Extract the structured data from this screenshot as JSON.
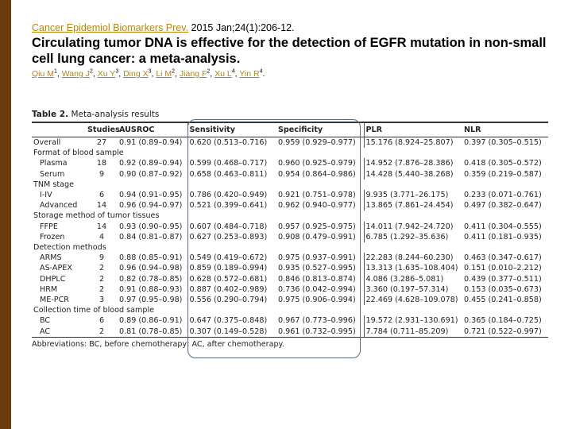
{
  "citation": {
    "journal": "Cancer Epidemiol Biomarkers Prev.",
    "details": "2015 Jan;24(1):206-12."
  },
  "title": "Circulating tumor DNA is effective for the detection of EGFR mutation in non-small cell lung cancer: a meta-analysis.",
  "authors": [
    {
      "name": "Qiu M",
      "aff": "1"
    },
    {
      "name": "Wang J",
      "aff": "2"
    },
    {
      "name": "Xu Y",
      "aff": "3"
    },
    {
      "name": "Ding X",
      "aff": "3"
    },
    {
      "name": "Li M",
      "aff": "2"
    },
    {
      "name": "Jiang F",
      "aff": "2"
    },
    {
      "name": "Xu L",
      "aff": "4"
    },
    {
      "name": "Yin R",
      "aff": "4"
    }
  ],
  "table": {
    "label": "Table 2.",
    "caption": "Meta-analysis results",
    "headers": [
      "",
      "Studies",
      "AUSROC",
      "Sensitivity",
      "Specificity",
      "PLR",
      "NLR"
    ],
    "rows": [
      {
        "type": "data",
        "label": "Overall",
        "cells": [
          "27",
          "0.91 (0.89–0.94)",
          "0.620 (0.513–0.716)",
          "0.959 (0.929–0.977)",
          "15.176 (8.924–25.807)",
          "0.397 (0.305–0.515)"
        ]
      },
      {
        "type": "group",
        "label": "Format of blood sample"
      },
      {
        "type": "data",
        "label": "Plasma",
        "cells": [
          "18",
          "0.92 (0.89–0.94)",
          "0.599 (0.468–0.717)",
          "0.960 (0.925–0.979)",
          "14.952 (7.876–28.386)",
          "0.418 (0.305–0.572)"
        ]
      },
      {
        "type": "data",
        "label": "Serum",
        "cells": [
          "9",
          "0.90 (0.87–0.92)",
          "0.658 (0.463–0.811)",
          "0.954 (0.864–0.986)",
          "14.428 (5.440–38.268)",
          "0.359 (0.219–0.587)"
        ]
      },
      {
        "type": "group",
        "label": "TNM stage"
      },
      {
        "type": "data",
        "label": "I-IV",
        "cells": [
          "6",
          "0.94 (0.91–0.95)",
          "0.786 (0.420–0.949)",
          "0.921 (0.751–0.978)",
          "9.935 (3.771–26.175)",
          "0.233 (0.071–0.761)"
        ]
      },
      {
        "type": "data",
        "label": "Advanced",
        "cells": [
          "14",
          "0.96 (0.94–0.97)",
          "0.521 (0.399–0.641)",
          "0.962 (0.940–0.977)",
          "13.865 (7.861–24.454)",
          "0.497 (0.382–0.647)"
        ]
      },
      {
        "type": "group",
        "label": "Storage method of tumor tissues"
      },
      {
        "type": "data",
        "label": "FFPE",
        "cells": [
          "14",
          "0.93 (0.90–0.95)",
          "0.607 (0.484–0.718)",
          "0.957 (0.925–0.975)",
          "14.011 (7.942–24.720)",
          "0.411 (0.304–0.555)"
        ]
      },
      {
        "type": "data",
        "label": "Frozen",
        "cells": [
          "4",
          "0.84 (0.81–0.87)",
          "0.627 (0.253–0.893)",
          "0.908 (0.479–0.991)",
          "6.785 (1.292–35.636)",
          "0.411 (0.181–0.935)"
        ]
      },
      {
        "type": "group",
        "label": "Detection methods"
      },
      {
        "type": "data",
        "label": "ARMS",
        "cells": [
          "9",
          "0.88 (0.85–0.91)",
          "0.549 (0.419–0.672)",
          "0.975 (0.937–0.991)",
          "22.283 (8.244–60.230)",
          "0.463 (0.347–0.617)"
        ]
      },
      {
        "type": "data",
        "label": "AS-APEX",
        "cells": [
          "2",
          "0.96 (0.94–0.98)",
          "0.859 (0.189–0.994)",
          "0.935 (0.527–0.995)",
          "13.313 (1.635–108.404)",
          "0.151 (0.010–2.212)"
        ]
      },
      {
        "type": "data",
        "label": "DHPLC",
        "cells": [
          "2",
          "0.82 (0.78–0.85)",
          "0.628 (0.572–0.681)",
          "0.846 (0.813–0.874)",
          "4.086 (3.286–5.081)",
          "0.439 (0.377–0.511)"
        ]
      },
      {
        "type": "data",
        "label": "HRM",
        "cells": [
          "2",
          "0.91 (0.88–0.93)",
          "0.887 (0.402–0.989)",
          "0.736 (0.042–0.994)",
          "3.360 (0.197–57.314)",
          "0.153 (0.035–0.673)"
        ]
      },
      {
        "type": "data",
        "label": "ME-PCR",
        "cells": [
          "3",
          "0.97 (0.95–0.98)",
          "0.556 (0.290–0.794)",
          "0.975 (0.906–0.994)",
          "22.469 (4.628–109.078)",
          "0.455 (0.241–0.858)"
        ]
      },
      {
        "type": "group",
        "label": "Collection time of blood sample"
      },
      {
        "type": "data",
        "label": "BC",
        "cells": [
          "6",
          "0.89 (0.86–0.91)",
          "0.647 (0.375–0.848)",
          "0.967 (0.773–0.996)",
          "19.572 (2.931–130.691)",
          "0.365 (0.184–0.725)"
        ]
      },
      {
        "type": "data",
        "label": "AC",
        "cells": [
          "2",
          "0.81 (0.78–0.85)",
          "0.307 (0.149–0.528)",
          "0.961 (0.732–0.995)",
          "7.784 (0.711–85.209)",
          "0.721 (0.522–0.997)"
        ]
      }
    ],
    "footnote": "Abbreviations: BC, before chemotherapy; AC, after chemotherapy."
  }
}
